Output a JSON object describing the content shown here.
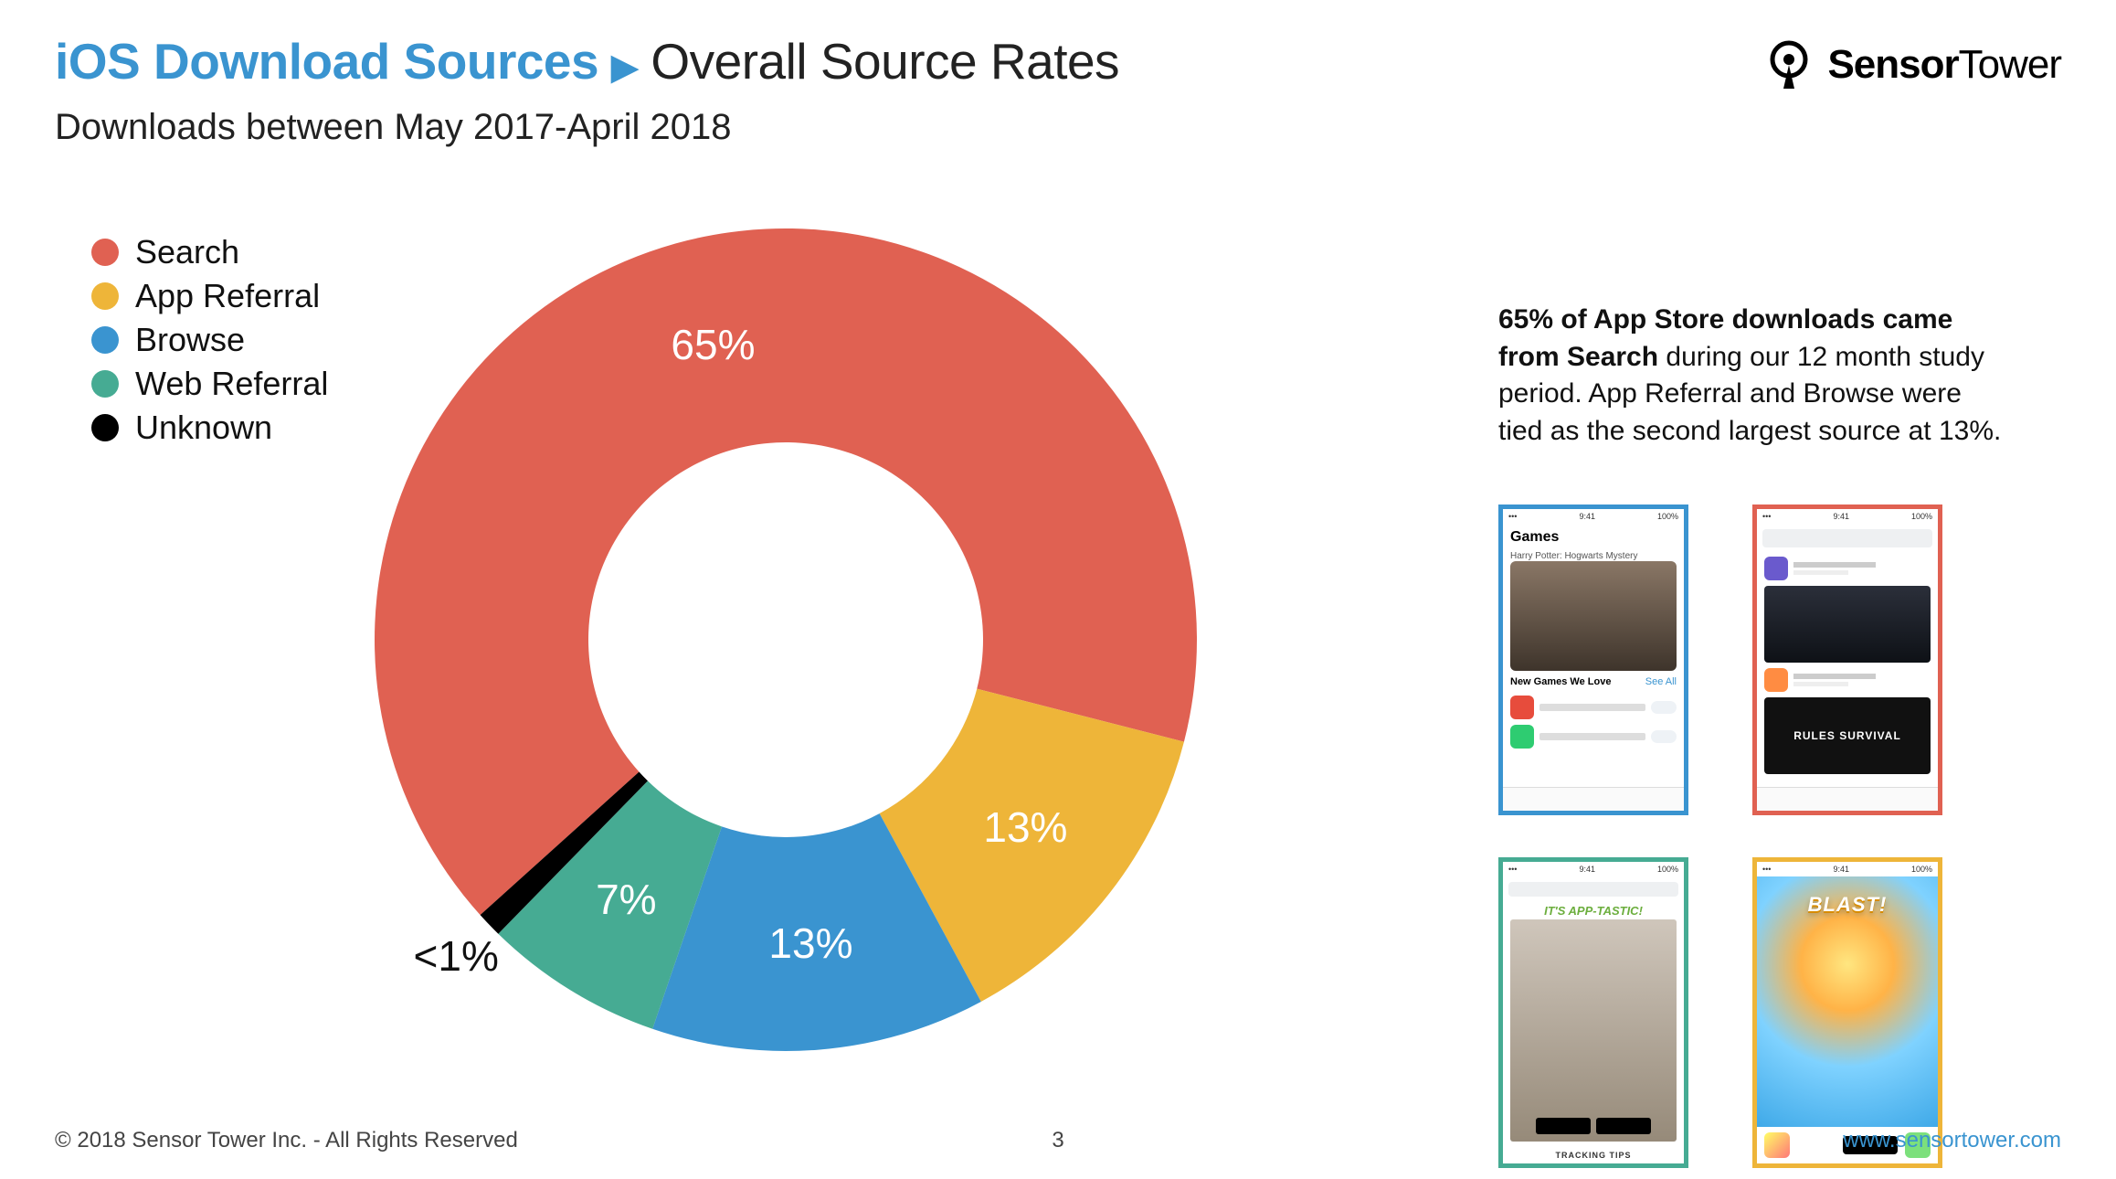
{
  "header": {
    "title_primary": "iOS Download Sources",
    "title_primary_color": "#3a94d0",
    "caret": "▶",
    "title_secondary": "Overall Source Rates",
    "subtitle": "Downloads between May 2017-April 2018"
  },
  "brand": {
    "name_bold": "Sensor",
    "name_light": "Tower"
  },
  "chart": {
    "type": "donut",
    "inner_radius_ratio": 0.48,
    "background": "#ffffff",
    "label_fontsize": 46,
    "label_color_light": "#ffffff",
    "label_color_dark": "#111111",
    "start_angle_deg": 138,
    "series": [
      {
        "name": "Search",
        "value": 65,
        "display": "65%",
        "color": "#e06152"
      },
      {
        "name": "App Referral",
        "value": 13,
        "display": "13%",
        "color": "#eeb539"
      },
      {
        "name": "Browse",
        "value": 13,
        "display": "13%",
        "color": "#3a94d0"
      },
      {
        "name": "Web Referral",
        "value": 7,
        "display": "7%",
        "color": "#46ab93"
      },
      {
        "name": "Unknown",
        "value": 1,
        "display": "<1%",
        "color": "#000000",
        "label_outside": true
      }
    ]
  },
  "legend": {
    "fontsize": 36,
    "swatch_size": 30,
    "items": [
      {
        "label": "Search",
        "color": "#e06152"
      },
      {
        "label": "App Referral",
        "color": "#eeb539"
      },
      {
        "label": "Browse",
        "color": "#3a94d0"
      },
      {
        "label": "Web Referral",
        "color": "#46ab93"
      },
      {
        "label": "Unknown",
        "color": "#000000"
      }
    ]
  },
  "blurb": {
    "bold": "65% of App Store downloads came from Search",
    "rest": " during our 12 month study period. App Referral and Browse were tied as the second largest source at 13%."
  },
  "phones": {
    "browse": {
      "border_color": "#3a94d0",
      "heading": "Games",
      "subheading": "New Games We Love",
      "see_all": "See All"
    },
    "search": {
      "border_color": "#e06152",
      "rules_label": "RULES SURVIVAL"
    },
    "web_referral": {
      "border_color": "#46ab93",
      "banner": "IT'S APP-TASTIC!",
      "footer": "TRACKING TIPS"
    },
    "app_referral": {
      "border_color": "#eeb539",
      "title": "BLAST!"
    }
  },
  "footer": {
    "copyright": "© 2018 Sensor Tower Inc. - All Rights Reserved",
    "page": "3",
    "link": "www.sensortower.com"
  }
}
